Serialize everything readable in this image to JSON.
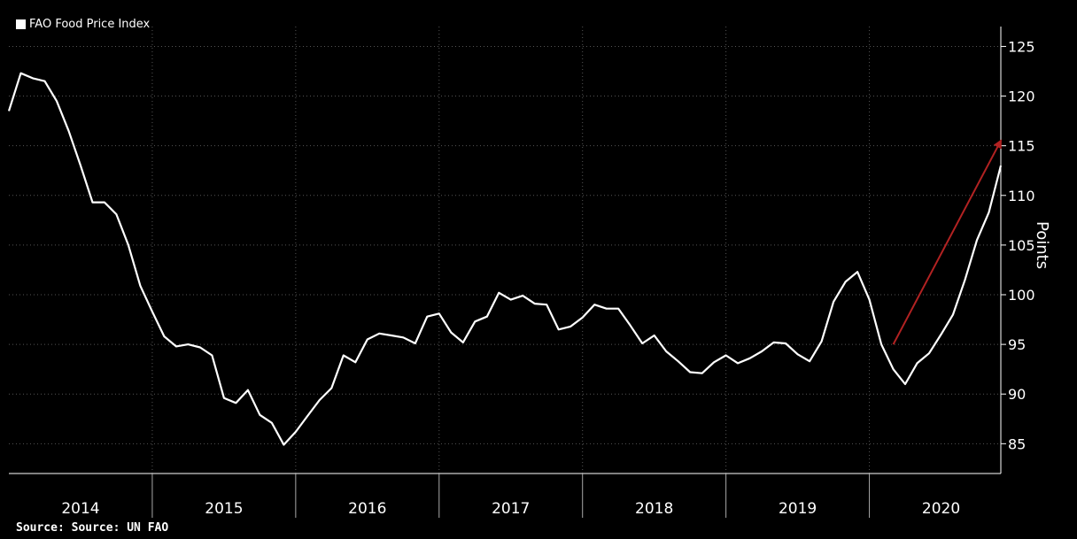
{
  "legend": {
    "label": "FAO Food Price Index"
  },
  "source": "Source: Source: UN FAO",
  "colors": {
    "background": "#000000",
    "line": "#ffffff",
    "arrow": "#b22222",
    "grid": "#555555"
  },
  "chart_data": {
    "type": "line",
    "title": "",
    "xlabel": "",
    "ylabel": "Points",
    "ylim": [
      82,
      127
    ],
    "yticks": [
      85,
      90,
      95,
      100,
      105,
      110,
      115,
      120,
      125
    ],
    "xtick_labels": [
      "2014",
      "2015",
      "2016",
      "2017",
      "2018",
      "2019",
      "2020"
    ],
    "xrange": [
      "2014-01",
      "2020-12"
    ],
    "grid": true,
    "legend_position": "top-left",
    "series": [
      {
        "name": "FAO Food Price Index",
        "x": [
          "2014-01",
          "2014-02",
          "2014-03",
          "2014-04",
          "2014-05",
          "2014-06",
          "2014-07",
          "2014-08",
          "2014-09",
          "2014-10",
          "2014-11",
          "2014-12",
          "2015-01",
          "2015-02",
          "2015-03",
          "2015-04",
          "2015-05",
          "2015-06",
          "2015-07",
          "2015-08",
          "2015-09",
          "2015-10",
          "2015-11",
          "2015-12",
          "2016-01",
          "2016-02",
          "2016-03",
          "2016-04",
          "2016-05",
          "2016-06",
          "2016-07",
          "2016-08",
          "2016-09",
          "2016-10",
          "2016-11",
          "2016-12",
          "2017-01",
          "2017-02",
          "2017-03",
          "2017-04",
          "2017-05",
          "2017-06",
          "2017-07",
          "2017-08",
          "2017-09",
          "2017-10",
          "2017-11",
          "2017-12",
          "2018-01",
          "2018-02",
          "2018-03",
          "2018-04",
          "2018-05",
          "2018-06",
          "2018-07",
          "2018-08",
          "2018-09",
          "2018-10",
          "2018-11",
          "2018-12",
          "2019-01",
          "2019-02",
          "2019-03",
          "2019-04",
          "2019-05",
          "2019-06",
          "2019-07",
          "2019-08",
          "2019-09",
          "2019-10",
          "2019-11",
          "2019-12",
          "2020-01",
          "2020-02",
          "2020-03",
          "2020-04",
          "2020-05",
          "2020-06",
          "2020-07",
          "2020-08",
          "2020-09",
          "2020-10",
          "2020-11",
          "2020-12"
        ],
        "y": [
          118.5,
          122.3,
          121.8,
          121.5,
          119.5,
          116.5,
          113.0,
          109.3,
          109.3,
          108.1,
          105.0,
          100.9,
          98.3,
          95.8,
          94.8,
          95.0,
          94.7,
          93.9,
          89.6,
          89.1,
          90.4,
          87.9,
          87.1,
          84.9,
          86.2,
          87.8,
          89.4,
          90.6,
          93.9,
          93.2,
          95.5,
          96.1,
          95.9,
          95.7,
          95.1,
          97.8,
          98.1,
          96.2,
          95.2,
          97.3,
          97.8,
          100.2,
          99.5,
          99.9,
          99.1,
          99.0,
          96.5,
          96.8,
          97.7,
          99.0,
          98.6,
          98.6,
          96.9,
          95.1,
          95.9,
          94.3,
          93.3,
          92.2,
          92.1,
          93.2,
          93.9,
          93.1,
          93.6,
          94.3,
          95.2,
          95.1,
          94.0,
          93.3,
          95.3,
          99.3,
          101.3,
          102.3,
          99.5,
          95.0,
          92.5,
          91.0,
          93.1,
          94.1,
          96.0,
          98.0,
          101.5,
          105.5,
          108.3,
          113.0
        ]
      }
    ],
    "annotations": [
      {
        "type": "arrow",
        "from": [
          "2020-03",
          95.0
        ],
        "to": [
          "2020-12",
          115.5
        ]
      }
    ]
  }
}
